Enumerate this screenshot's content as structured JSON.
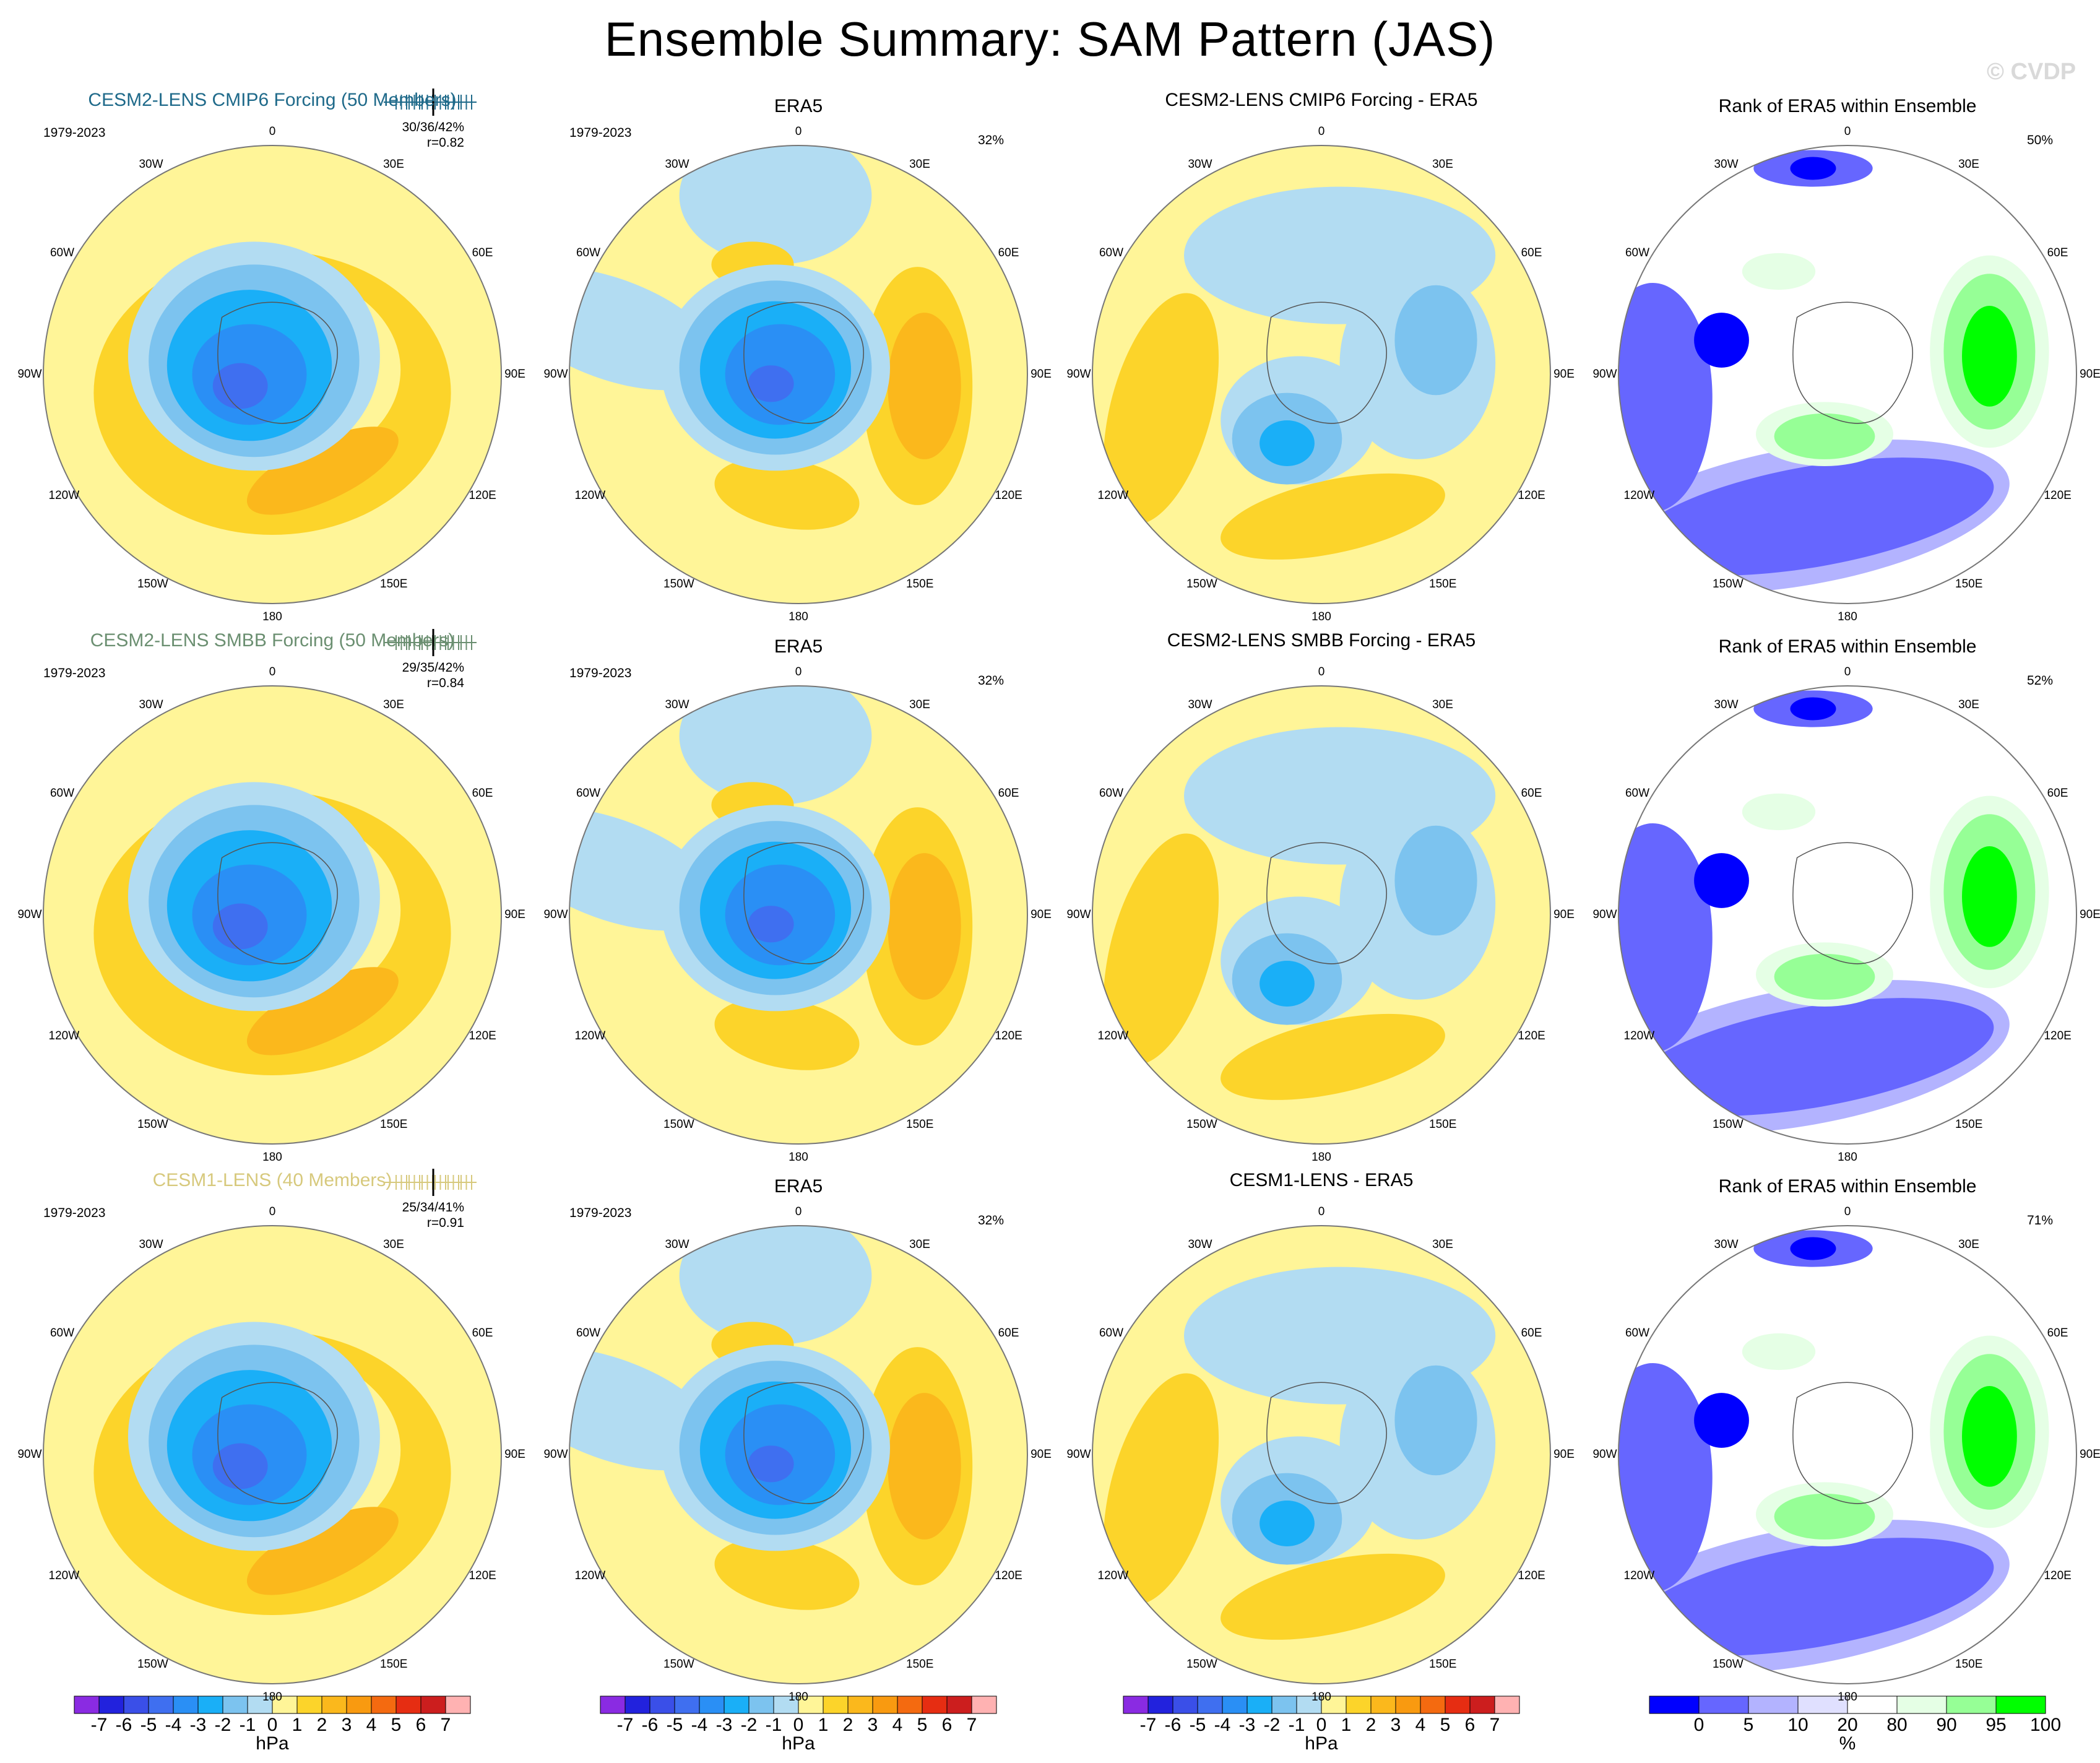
{
  "title": "Ensemble Summary: SAM Pattern (JAS)",
  "watermark": "© CVDP",
  "period": "1979-2023",
  "longitude_labels": [
    "0",
    "30E",
    "60E",
    "90E",
    "120E",
    "150E",
    "180",
    "150W",
    "120W",
    "90W",
    "60W",
    "30W"
  ],
  "colors": {
    "model1_title": "#1f6a8a",
    "model2_title": "#6b8f71",
    "model3_title": "#d7c97d"
  },
  "rows": [
    {
      "model_title": "CESM2-LENS CMIP6 Forcing (50 Members)",
      "stats_line1": "30/36/42%",
      "stats_line2": "r=0.82",
      "obs_title": "ERA5",
      "obs_pct": "32%",
      "diff_title": "CESM2-LENS CMIP6 Forcing - ERA5",
      "rank_title": "Rank of ERA5 within Ensemble",
      "rank_pct": "50%"
    },
    {
      "model_title": "CESM2-LENS SMBB Forcing (50 Members)",
      "stats_line1": "29/35/42%",
      "stats_line2": "r=0.84",
      "obs_title": "ERA5",
      "obs_pct": "32%",
      "diff_title": "CESM2-LENS SMBB Forcing - ERA5",
      "rank_title": "Rank of ERA5 within Ensemble",
      "rank_pct": "52%"
    },
    {
      "model_title": "CESM1-LENS (40 Members)",
      "stats_line1": "25/34/41%",
      "stats_line2": "r=0.91",
      "obs_title": "ERA5",
      "obs_pct": "32%",
      "diff_title": "CESM1-LENS - ERA5",
      "rank_title": "Rank of ERA5 within Ensemble",
      "rank_pct": "71%"
    }
  ],
  "colorbars": {
    "hpa": {
      "labels": [
        "-7",
        "-6",
        "-5",
        "-4",
        "-3",
        "-2",
        "-1",
        "0",
        "1",
        "2",
        "3",
        "4",
        "5",
        "6",
        "7"
      ],
      "unit": "hPa",
      "colors": [
        "#8a2be2",
        "#2222dd",
        "#3a4fe8",
        "#3f6ff0",
        "#2a8ff5",
        "#1aaff7",
        "#7cc3ef",
        "#b2dcf2",
        "#fff598",
        "#fcd42a",
        "#fbb81c",
        "#f99a10",
        "#f46a10",
        "#e62d12",
        "#cc1e1e",
        "#ffb2b2"
      ]
    },
    "rank": {
      "labels": [
        "0",
        "5",
        "10",
        "20",
        "80",
        "90",
        "95",
        "100"
      ],
      "unit": "%",
      "colors": [
        "#0000ff",
        "#6666ff",
        "#b3b3ff",
        "#e0e0ff",
        "#ffffff",
        "#e5ffe5",
        "#96ff96",
        "#00ff00"
      ]
    }
  }
}
